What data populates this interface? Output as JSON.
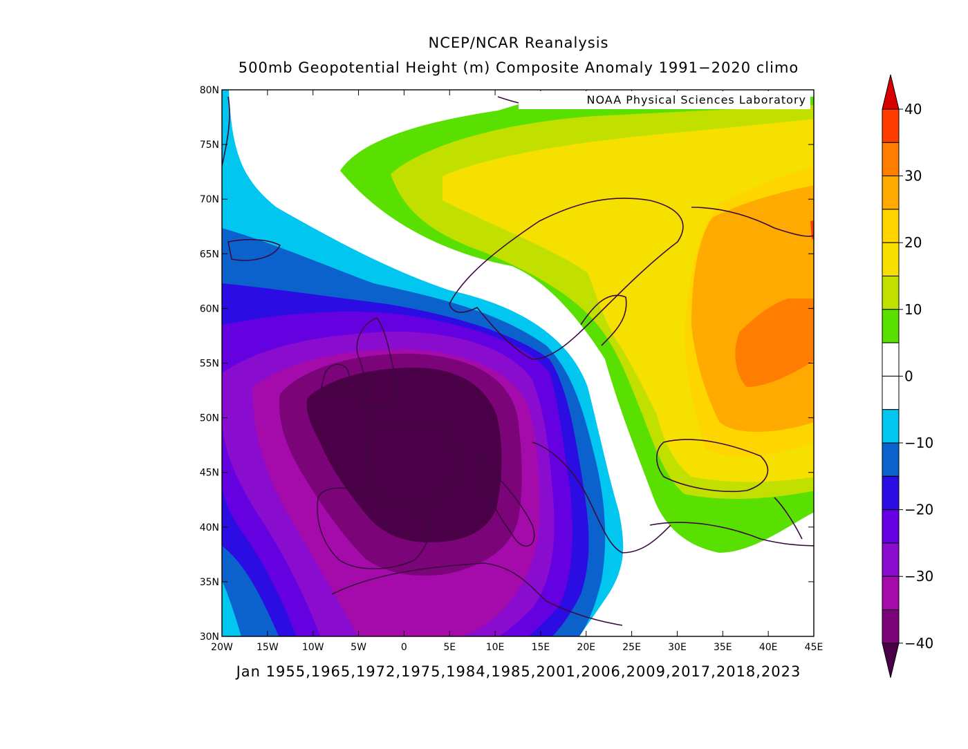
{
  "header": {
    "title": "NCEP/NCAR Reanalysis",
    "subtitle": "500mb Geopotential Height (m) Composite Anomaly 1991−2020 climo",
    "credit": "NOAA Physical Sciences Laboratory"
  },
  "footer": {
    "dates": "Jan 1955,1965,1972,1975,1984,1985,2001,2006,2009,2017,2018,2023"
  },
  "map": {
    "lon_range": [
      -20,
      45
    ],
    "lat_range": [
      30,
      80
    ],
    "lon_ticks": [
      "20W",
      "15W",
      "10W",
      "5W",
      "0",
      "5E",
      "10E",
      "15E",
      "20E",
      "25E",
      "30E",
      "35E",
      "40E",
      "45E"
    ],
    "lat_ticks": [
      "30N",
      "35N",
      "40N",
      "45N",
      "50N",
      "55N",
      "60N",
      "65N",
      "70N",
      "75N",
      "80N"
    ]
  },
  "colorbar": {
    "labels": [
      "40",
      "30",
      "20",
      "10",
      "0",
      "−10",
      "−20",
      "−30",
      "−40"
    ],
    "colors": {
      "n40": "#4a0046",
      "n35": "#7a0478",
      "n30": "#a50aab",
      "n25": "#8a0ccf",
      "n20": "#6500e0",
      "n15": "#2b0de3",
      "n10": "#0b62cc",
      "n5": "#00c6f0",
      "zero": "#ffffff",
      "p5": "#5ae000",
      "p10": "#c2e000",
      "p15": "#f6e000",
      "p20": "#ffd500",
      "p25": "#ffaa00",
      "p30": "#ff7d00",
      "p35": "#ff3d00",
      "p40": "#d80000"
    }
  },
  "legend_colors_order_top_to_bottom": [
    "p40",
    "p35",
    "p30",
    "p25",
    "p20",
    "p15",
    "p10",
    "p5",
    "zero",
    "zero",
    "n5",
    "n10",
    "n15",
    "n20",
    "n25",
    "n30",
    "n35",
    "n40"
  ]
}
